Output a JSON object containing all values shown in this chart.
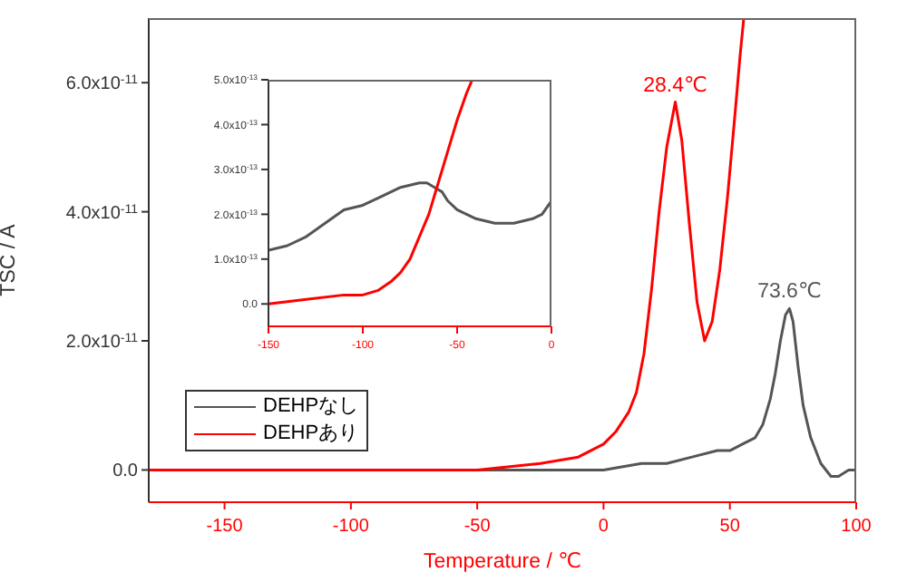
{
  "chart_data": [
    {
      "type": "line",
      "xlabel": "Temperature / ℃",
      "ylabel": "TSC / A",
      "xlim": [
        -180,
        100
      ],
      "xticks": [
        -150,
        -100,
        -50,
        0,
        50,
        100
      ],
      "ylim": [
        -5e-12,
        7e-11
      ],
      "yticks": [
        {
          "value": 0,
          "label": "0.0"
        },
        {
          "value": 2e-11,
          "label": "2.0x10$^{-11}$"
        },
        {
          "value": 4e-11,
          "label": "4.0x10$^{-11}$"
        },
        {
          "value": 6e-11,
          "label": "6.0x10$^{-11}$"
        }
      ],
      "legend": "bottom left",
      "grid": false,
      "marker": "none",
      "line_style": "solid",
      "annotations": [
        {
          "text": "28.4℃",
          "x": 28.4,
          "y": 5.7e-11
        },
        {
          "text": "73.6℃",
          "x": 73.6,
          "y": 2.5e-11
        }
      ],
      "series": [
        {
          "name": "DEHPなし",
          "color": "#555555",
          "x": [
            -180,
            -100,
            -50,
            -25,
            0,
            15,
            25,
            35,
            45,
            50,
            55,
            60,
            63,
            66,
            68,
            70,
            72,
            73.6,
            75,
            77,
            79,
            82,
            86,
            90,
            93,
            97,
            100
          ],
          "values": [
            0,
            0,
            0,
            0,
            0,
            1e-12,
            1e-12,
            2e-12,
            3e-12,
            3e-12,
            4e-12,
            5e-12,
            7e-12,
            1.1e-11,
            1.5e-11,
            2e-11,
            2.4e-11,
            2.5e-11,
            2.3e-11,
            1.6e-11,
            1e-11,
            5e-12,
            1e-12,
            -1e-12,
            -1e-12,
            0,
            0
          ]
        },
        {
          "name": "DEHPあり",
          "color": "#ff0000",
          "x": [
            -180,
            -100,
            -50,
            -25,
            -10,
            0,
            5,
            10,
            13,
            16,
            19,
            22,
            25,
            28.4,
            31,
            34,
            37,
            40,
            43,
            46,
            49,
            52,
            54,
            55.5
          ],
          "values": [
            0,
            0,
            0,
            1e-12,
            2e-12,
            4e-12,
            6e-12,
            9e-12,
            1.2e-11,
            1.8e-11,
            2.8e-11,
            4e-11,
            5e-11,
            5.7e-11,
            5.1e-11,
            3.8e-11,
            2.6e-11,
            2e-11,
            2.3e-11,
            3.1e-11,
            4.2e-11,
            5.5e-11,
            6.4e-11,
            7e-11
          ]
        }
      ]
    },
    {
      "type": "line",
      "xlim": [
        -150,
        0
      ],
      "xticks": [
        -150,
        -100,
        -50,
        0
      ],
      "ylim": [
        -5e-14,
        5e-13
      ],
      "yticks": [
        {
          "value": 0,
          "label": "0.0"
        },
        {
          "value": 1e-13,
          "label": "1.0x10$^{-13}$"
        },
        {
          "value": 2e-13,
          "label": "2.0x10$^{-13}$"
        },
        {
          "value": 3e-13,
          "label": "3.0x10$^{-13}$"
        },
        {
          "value": 4e-13,
          "label": "4.0x10$^{-13}$"
        },
        {
          "value": 5e-13,
          "label": "5.0x10$^{-13}$"
        }
      ],
      "grid": false,
      "marker": "none",
      "line_style": "solid",
      "series": [
        {
          "color": "#555555",
          "x": [
            -150,
            -140,
            -130,
            -120,
            -110,
            -100,
            -90,
            -80,
            -70,
            -66,
            -62,
            -58,
            -55,
            -50,
            -45,
            -40,
            -30,
            -20,
            -10,
            -5,
            0
          ],
          "values": [
            1.2e-13,
            1.3e-13,
            1.5e-13,
            1.8e-13,
            2.1e-13,
            2.2e-13,
            2.4e-13,
            2.6e-13,
            2.7e-13,
            2.7e-13,
            2.6e-13,
            2.5e-13,
            2.3e-13,
            2.1e-13,
            2e-13,
            1.9e-13,
            1.8e-13,
            1.8e-13,
            1.9e-13,
            2e-13,
            2.3e-13
          ]
        },
        {
          "color": "#ff0000",
          "x": [
            -150,
            -130,
            -110,
            -100,
            -92,
            -85,
            -80,
            -75,
            -70,
            -65,
            -60,
            -55,
            -50,
            -45,
            -42
          ],
          "values": [
            0,
            1e-14,
            2e-14,
            2e-14,
            3e-14,
            5e-14,
            7e-14,
            1e-13,
            1.5e-13,
            2e-13,
            2.7e-13,
            3.4e-13,
            4.1e-13,
            4.7e-13,
            5e-13
          ]
        }
      ]
    }
  ]
}
